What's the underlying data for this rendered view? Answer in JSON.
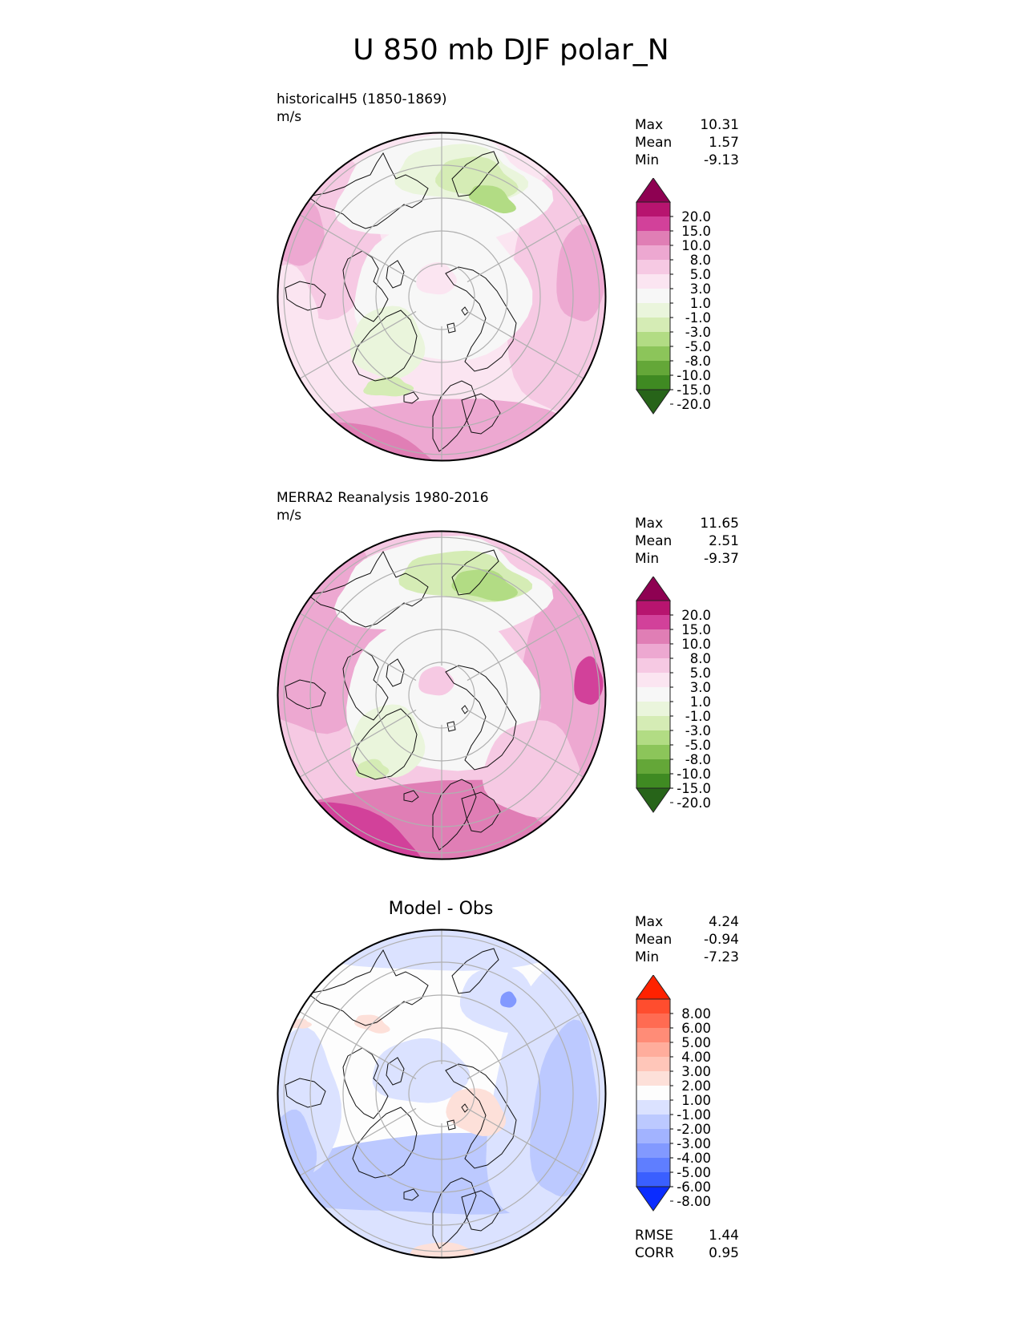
{
  "title": "U 850 mb DJF polar_N",
  "panels": [
    {
      "label1": "historicalH5 (1850-1869)",
      "label2": "m/s",
      "stats": [
        {
          "name": "Max",
          "value": "10.31"
        },
        {
          "name": "Mean",
          "value": "1.57"
        },
        {
          "name": "Min",
          "value": "-9.13"
        }
      ]
    },
    {
      "label1": "MERRA2 Reanalysis 1980-2016",
      "label2": "m/s",
      "stats": [
        {
          "name": "Max",
          "value": "11.65"
        },
        {
          "name": "Mean",
          "value": "2.51"
        },
        {
          "name": "Min",
          "value": "-9.37"
        }
      ]
    },
    {
      "title": "Model - Obs",
      "stats": [
        {
          "name": "Max",
          "value": "4.24"
        },
        {
          "name": "Mean",
          "value": "-0.94"
        },
        {
          "name": "Min",
          "value": "-7.23"
        }
      ],
      "extra_stats": [
        {
          "name": "RMSE",
          "value": "1.44"
        },
        {
          "name": "CORR",
          "value": "0.95"
        }
      ]
    }
  ],
  "colorbars": {
    "field": {
      "labels": [
        "20.0",
        "15.0",
        "10.0",
        "8.0",
        "5.0",
        "3.0",
        "1.0",
        "-1.0",
        "-3.0",
        "-5.0",
        "-8.0",
        "-10.0",
        "-15.0",
        "-20.0"
      ],
      "colors": [
        "#8e0152",
        "#b7146f",
        "#d2419a",
        "#e07eb5",
        "#eda8d1",
        "#f6c9e3",
        "#fbe5f1",
        "#f7f7f7",
        "#eaf5dc",
        "#d5ecb5",
        "#b2dc84",
        "#8cc55a",
        "#64a738",
        "#3f8a22",
        "#276419"
      ]
    },
    "diff": {
      "labels": [
        "8.00",
        "6.00",
        "5.00",
        "4.00",
        "3.00",
        "2.00",
        "1.00",
        "-1.00",
        "-2.00",
        "-3.00",
        "-4.00",
        "-5.00",
        "-6.00",
        "-8.00"
      ],
      "colors": [
        "#ff2200",
        "#ff4d2e",
        "#ff6b52",
        "#ff8c77",
        "#ffad9c",
        "#ffc6b9",
        "#fde0d9",
        "#fdfdfd",
        "#dbe2ff",
        "#bcc9ff",
        "#a2b3ff",
        "#8299ff",
        "#5f7eff",
        "#3a5fff",
        "#0a2cff"
      ]
    }
  }
}
